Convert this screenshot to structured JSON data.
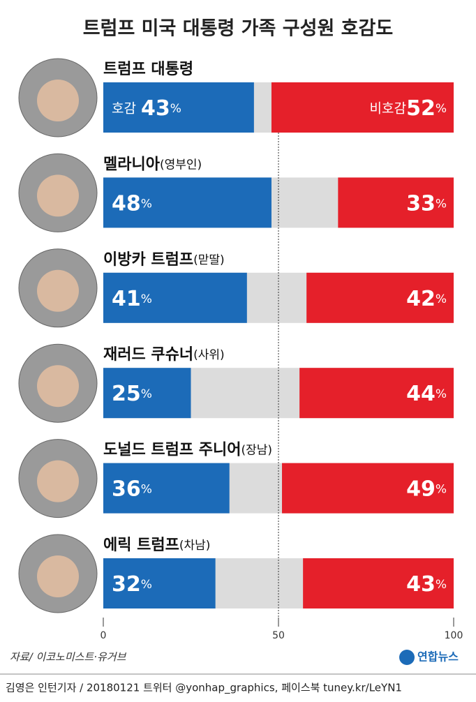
{
  "chart_data": {
    "type": "diverging_bar",
    "title": "트럼프 미국 대통령 가족 구성원 호감도",
    "categories": [
      "트럼프 대통령",
      "멜라니아(영부인)",
      "이방카 트럼프(맏딸)",
      "재러드 쿠슈너(사위)",
      "도널드 트럼프 주니어(장남)",
      "에릭 트럼프(차남)"
    ],
    "series": [
      {
        "name": "호감",
        "color": "#1c6bb8",
        "values": [
          43,
          48,
          41,
          25,
          36,
          32
        ],
        "value_labels": [
          "43%",
          "48%",
          "41%",
          "25%",
          "36%",
          "32%"
        ]
      },
      {
        "name": "비호감",
        "color": "#e5202a",
        "values": [
          52,
          33,
          42,
          44,
          49,
          43
        ],
        "value_labels": [
          "52%",
          "33%",
          "42%",
          "44%",
          "49%",
          "43%"
        ]
      }
    ],
    "xlim": [
      0,
      100
    ],
    "xticks": [
      0,
      50,
      100
    ],
    "source": "자료/ 이코노미스트·유거브",
    "logo": "연합뉴스",
    "footer": "김영은 인턴기자 / 20180121  트위터 @yonhap_graphics, 페이스북 tuney.kr/LeYN1"
  }
}
